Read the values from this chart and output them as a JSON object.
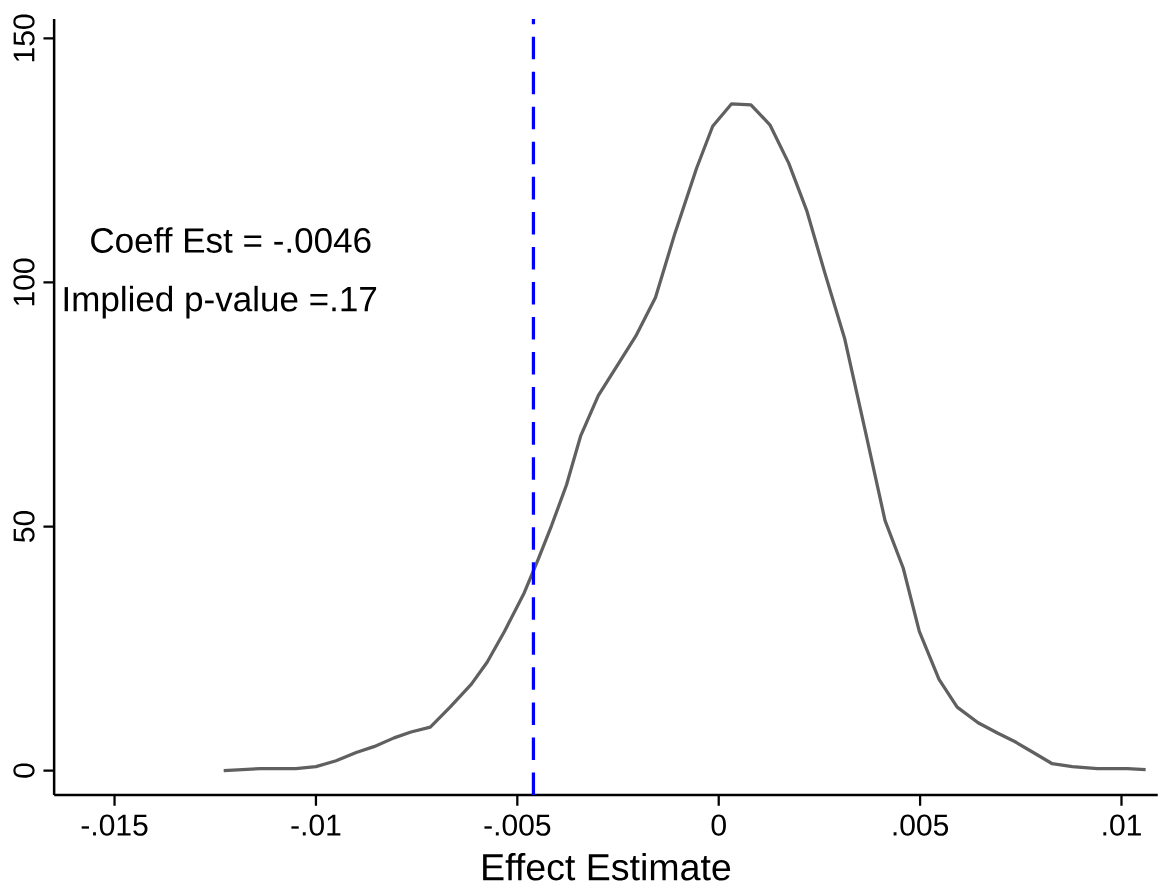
{
  "chart_data": {
    "type": "line",
    "xlabel": "Effect Estimate",
    "x": [
      -0.01229,
      -0.01137,
      -0.0105,
      -0.01,
      -0.0095,
      -0.009,
      -0.00856,
      -0.00806,
      -0.00764,
      -0.00716,
      -0.00667,
      -0.00614,
      -0.00575,
      -0.00532,
      -0.00483,
      -0.00448,
      -0.00415,
      -0.00378,
      -0.00343,
      -0.00299,
      -0.00254,
      -0.00206,
      -0.00157,
      -0.00109,
      -0.00055,
      -0.00015,
      0.00032,
      0.0008,
      0.00127,
      0.00174,
      0.00219,
      0.00264,
      0.00313,
      0.00363,
      0.00413,
      0.00458,
      0.00498,
      0.00547,
      0.00592,
      0.00644,
      0.00692,
      0.00736,
      0.00781,
      0.00828,
      0.00878,
      0.0094,
      0.01015,
      0.0106
    ],
    "series": [
      {
        "color": "#606060",
        "values": [
          0,
          0.4,
          0.4,
          0.8,
          2,
          3.7,
          4.9,
          6.7,
          7.9,
          8.9,
          13,
          17.7,
          22.2,
          28.5,
          36.4,
          43.3,
          50.2,
          58.5,
          68.5,
          76.8,
          82.7,
          89,
          96.9,
          110,
          123.4,
          132,
          136.6,
          136.4,
          132.3,
          124.4,
          114.6,
          101.8,
          88.4,
          69.9,
          51.2,
          41.5,
          28.5,
          18.7,
          13,
          9.8,
          7.7,
          5.9,
          3.7,
          1.4,
          0.8,
          0.4,
          0.4,
          0.2
        ]
      }
    ],
    "xlim": [
      -0.0165,
      0.0109
    ],
    "ylim": [
      -5,
      154
    ],
    "xticks": [
      {
        "value": -0.015,
        "label": "-.015"
      },
      {
        "value": -0.01,
        "label": "-.01"
      },
      {
        "value": -0.005,
        "label": "-.005"
      },
      {
        "value": 0,
        "label": "0"
      },
      {
        "value": 0.005,
        "label": ".005"
      },
      {
        "value": 0.01,
        "label": ".01"
      }
    ],
    "yticks": [
      0,
      50,
      100,
      150
    ],
    "ref_lines": [
      {
        "axis": "x",
        "value": -0.0046,
        "color": "#0000ff",
        "line_style": "dashed"
      }
    ],
    "annotations": [
      "Coeff Est = -.0046",
      "Implied p-value =.17"
    ],
    "grid": false,
    "marker": "none",
    "line_style": "solid"
  }
}
